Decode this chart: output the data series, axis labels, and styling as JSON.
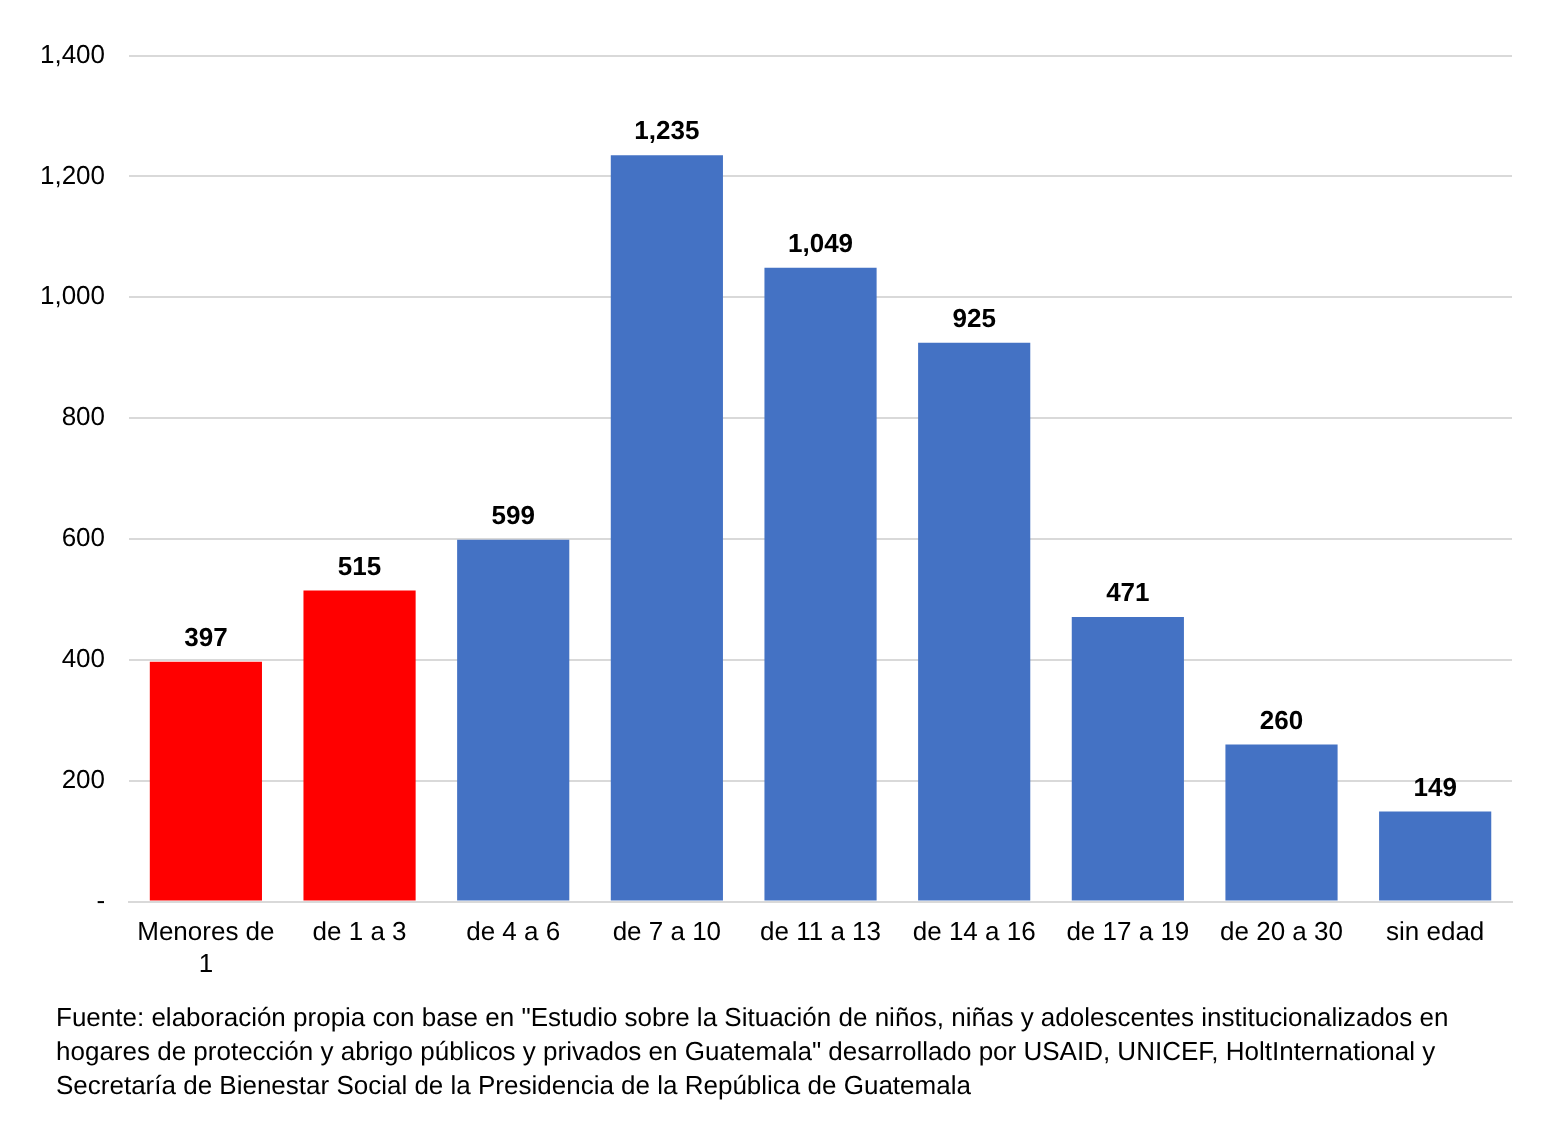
{
  "chart_data": {
    "type": "bar",
    "categories": [
      "Menores de 1",
      "de 1 a 3",
      "de 4 a 6",
      "de 7 a 10",
      "de 11 a 13",
      "de 14 a 16",
      "de 17 a 19",
      "de 20 a 30",
      "sin edad"
    ],
    "values": [
      397,
      515,
      599,
      1235,
      1049,
      925,
      471,
      260,
      149
    ],
    "colors": [
      "#ff0000",
      "#ff0000",
      "#4472c4",
      "#4472c4",
      "#4472c4",
      "#4472c4",
      "#4472c4",
      "#4472c4",
      "#4472c4"
    ],
    "value_labels": [
      "397",
      "515",
      "599",
      "1,235",
      "1,049",
      "925",
      "471",
      "260",
      "149"
    ],
    "ylim": [
      0,
      1400
    ],
    "yticks": [
      {
        "value": 0,
        "label": "-"
      },
      200,
      400,
      600,
      800,
      {
        "value": 1000,
        "label": "1,000"
      },
      {
        "value": 1200,
        "label": "1,200"
      },
      {
        "value": 1400,
        "label": "1,400"
      }
    ],
    "grid": "y",
    "legend": false,
    "annotations": [
      "Fuente: elaboración propia con base en \"Estudio sobre la Situación de niños, niñas y adolescentes institucionalizados en hogares de protección y abrigo públicos y privados en Guatemala\" desarrollado por USAID, UNICEF, HoltInternational y Secretaría de Bienestar Social de la Presidencia de la República de Guatemala"
    ]
  }
}
